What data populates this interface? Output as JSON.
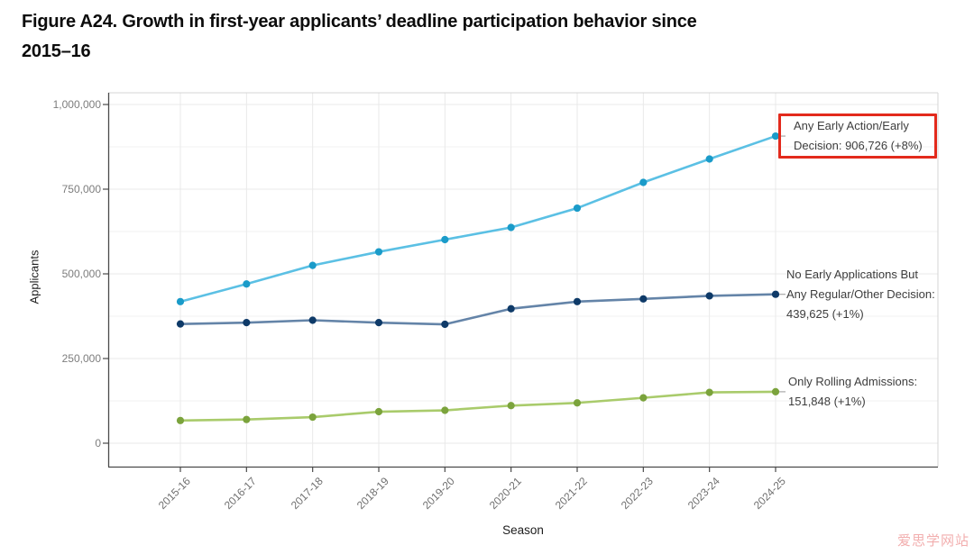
{
  "figure": {
    "title_line1": "Figure A24. Growth in first-year applicants’ deadline participation behavior since",
    "title_line2": "2015–16",
    "watermark": "爱思学网站"
  },
  "chart_data": {
    "type": "line",
    "title": "Figure A24. Growth in first-year applicants’ deadline participation behavior since 2015–16",
    "xlabel": "Season",
    "ylabel": "Applicants",
    "categories": [
      "2015-16",
      "2016-17",
      "2017-18",
      "2018-19",
      "2019-20",
      "2020-21",
      "2021-22",
      "2022-23",
      "2023-24",
      "2024-25"
    ],
    "ylim": [
      0,
      1000000
    ],
    "yticks": [
      {
        "value": 0,
        "label": "0"
      },
      {
        "value": 250000,
        "label": "250,000"
      },
      {
        "value": 500000,
        "label": "500,000"
      },
      {
        "value": 750000,
        "label": "750,000"
      },
      {
        "value": 1000000,
        "label": "1,000,000"
      }
    ],
    "grid": true,
    "legend_position": "right-side annotations with leader lines",
    "series": [
      {
        "name": "Any Early Action/Early Decision",
        "values": [
          418000,
          470000,
          525000,
          565000,
          601000,
          637000,
          694000,
          770000,
          839000,
          906726
        ],
        "final_value": "906,726",
        "final_change": "+8%",
        "annotation_lines": [
          "Any Early Action/Early",
          "Decision: 906,726 (+8%)"
        ],
        "line_color": "#5bc0e4",
        "point_color": "#1a9bc9",
        "highlighted": true
      },
      {
        "name": "No Early Applications But Any Regular/Other Decision",
        "values": [
          352000,
          356000,
          363000,
          356000,
          351000,
          397000,
          418000,
          426000,
          435000,
          439625
        ],
        "final_value": "439,625",
        "final_change": "+1%",
        "annotation_lines": [
          "No Early Applications But",
          "Any Regular/Other Decision:",
          "439,625 (+1%)"
        ],
        "line_color": "#6484a8",
        "point_color": "#0e3a68",
        "highlighted": false
      },
      {
        "name": "Only Rolling Admissions",
        "values": [
          67000,
          70000,
          77000,
          93000,
          97000,
          111000,
          119000,
          134000,
          150000,
          151848
        ],
        "final_value": "151,848",
        "final_change": "+1%",
        "annotation_lines": [
          "Only Rolling Admissions:",
          "151,848 (+1%)"
        ],
        "line_color": "#a9cb6b",
        "point_color": "#7ba33c",
        "highlighted": false
      }
    ],
    "highlight_box_color": "#e32a1c",
    "colors": {
      "grid_major": "#e9e9e9",
      "grid_minor": "#f2f2f2",
      "axis_line": "#4a4a4a",
      "panel_border": "#d4d4d4",
      "leader_line": "#a8a8a8"
    }
  }
}
